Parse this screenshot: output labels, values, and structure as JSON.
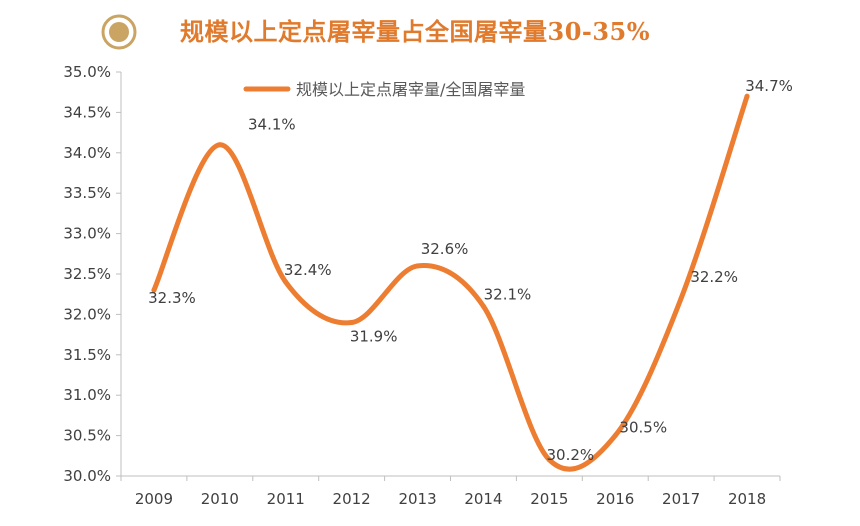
{
  "header": {
    "title": "规模以上定点屠宰量占全国屠宰量30-35%",
    "icon": "circle-target-icon",
    "accent_color": "#e07a2c",
    "icon_color": "#c9a463"
  },
  "chart_data": {
    "type": "line",
    "smooth": true,
    "categories": [
      "2009",
      "2010",
      "2011",
      "2012",
      "2013",
      "2014",
      "2015",
      "2016",
      "2017",
      "2018"
    ],
    "series": [
      {
        "name": "规模以上定点屠宰量/全国屠宰量",
        "values": [
          32.3,
          34.1,
          32.4,
          31.9,
          32.6,
          32.1,
          30.2,
          30.5,
          32.2,
          34.7
        ],
        "labels": [
          "32.3%",
          "34.1%",
          "32.4%",
          "31.9%",
          "32.6%",
          "32.1%",
          "30.2%",
          "30.5%",
          "32.2%",
          "34.7%"
        ],
        "color": "#ed7d31"
      }
    ],
    "yticks": [
      "30.0%",
      "30.5%",
      "31.0%",
      "31.5%",
      "32.0%",
      "32.5%",
      "33.0%",
      "33.5%",
      "34.0%",
      "34.5%",
      "35.0%"
    ],
    "ylim": [
      30.0,
      35.0
    ],
    "y_unit": "%",
    "grid": false,
    "legend": "top-center"
  }
}
